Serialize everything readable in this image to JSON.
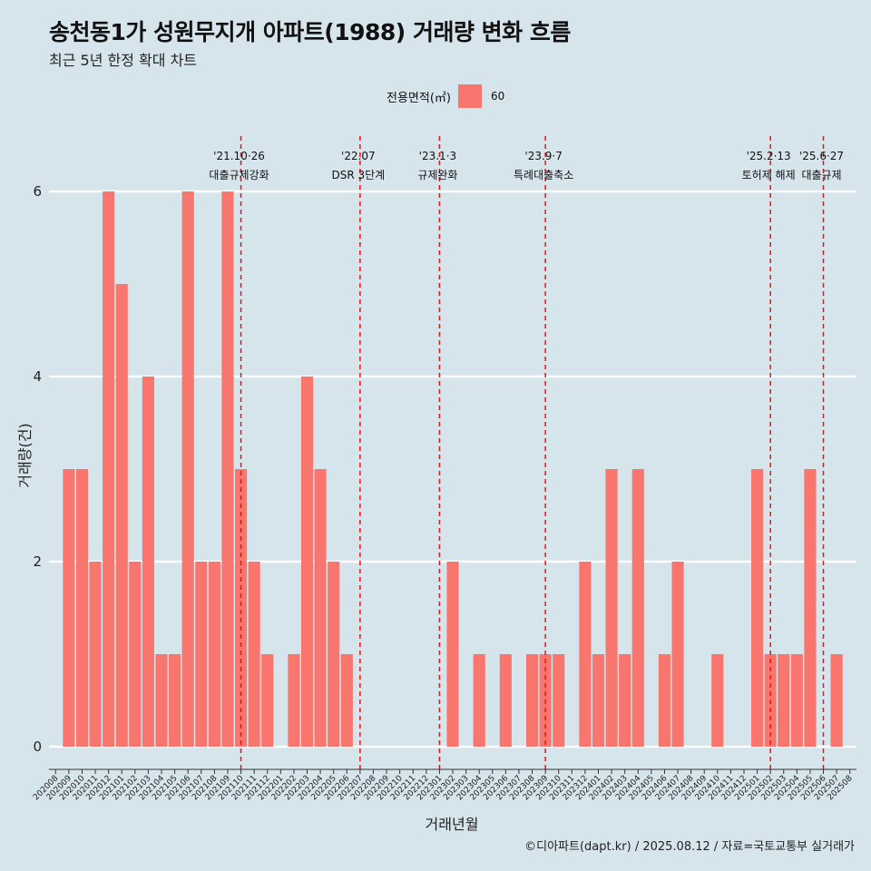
{
  "title": "송천동1가 성원무지개 아파트(1988) 거래량 변화 흐름",
  "subtitle": "최근 5년 한정 확대 차트",
  "legend": {
    "title": "전용면적(㎡)",
    "label": "60"
  },
  "caption": "©디아파트(dapt.kr) / 2025.08.12 / 자료=국토교통부 실거래가",
  "colors": {
    "bar": "#F8766D",
    "background": "#d6e4ec",
    "grid": "#ffffff",
    "vline": "#ee1111"
  },
  "chart_data": {
    "type": "bar",
    "xlabel": "거래년월",
    "ylabel": "거래량(건)",
    "ylim": [
      0,
      6
    ],
    "yticks": [
      0,
      2,
      4,
      6
    ],
    "grid": true,
    "legend_position": "top",
    "categories": [
      "202008",
      "202009",
      "202010",
      "202011",
      "202012",
      "202101",
      "202102",
      "202103",
      "202104",
      "202105",
      "202106",
      "202107",
      "202108",
      "202109",
      "202110",
      "202111",
      "202112",
      "202201",
      "202202",
      "202203",
      "202204",
      "202205",
      "202206",
      "202207",
      "202208",
      "202209",
      "202210",
      "202211",
      "202212",
      "202301",
      "202302",
      "202303",
      "202304",
      "202305",
      "202306",
      "202307",
      "202308",
      "202309",
      "202310",
      "202311",
      "202312",
      "202401",
      "202402",
      "202403",
      "202404",
      "202405",
      "202406",
      "202407",
      "202408",
      "202409",
      "202410",
      "202411",
      "202412",
      "202501",
      "202502",
      "202503",
      "202504",
      "202505",
      "202506",
      "202507",
      "202508"
    ],
    "series": [
      {
        "name": "60",
        "values": [
          0,
          3,
          3,
          2,
          6,
          5,
          2,
          4,
          1,
          1,
          6,
          2,
          2,
          6,
          3,
          2,
          1,
          0,
          1,
          4,
          3,
          2,
          1,
          0,
          0,
          0,
          0,
          0,
          0,
          0,
          2,
          0,
          1,
          0,
          1,
          0,
          1,
          1,
          1,
          0,
          2,
          1,
          3,
          1,
          3,
          0,
          1,
          2,
          0,
          0,
          1,
          0,
          0,
          3,
          1,
          1,
          1,
          3,
          0,
          1,
          0
        ]
      }
    ],
    "annotations": [
      {
        "at": "202110",
        "date": "'21.10·26",
        "label": "대출규제강화"
      },
      {
        "at": "202207",
        "date": "'22.07",
        "label": "DSR 3단계"
      },
      {
        "at": "202301",
        "date": "'23.1·3",
        "label": "규제완화"
      },
      {
        "at": "202309",
        "date": "'23.9·7",
        "label": "특례대출축소"
      },
      {
        "at": "202502",
        "date": "'25.2·13",
        "label": "토허제 해제"
      },
      {
        "at": "202506",
        "date": "'25.6·27",
        "label": "대출규제"
      }
    ]
  }
}
